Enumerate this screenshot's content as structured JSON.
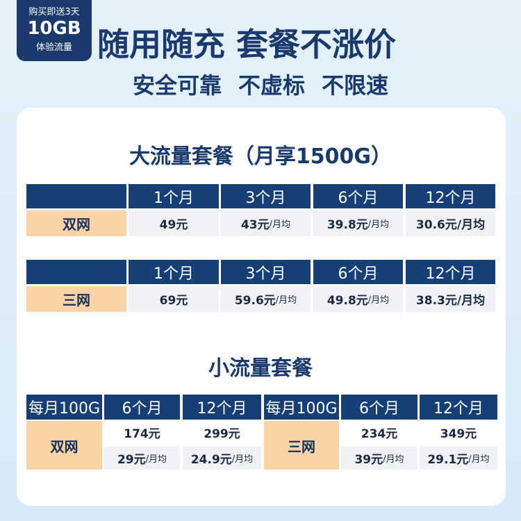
{
  "badge": {
    "line1": "购买即送3天",
    "line2": "10GB",
    "line3": "体验流量"
  },
  "title": "随用随充 套餐不涨价",
  "subtitle": [
    "安全可靠",
    "不虚标",
    "不限速"
  ],
  "section1": {
    "title": "大流量套餐（月享1500G）",
    "tables": [
      {
        "header": [
          "1个月",
          "3个月",
          "6个月",
          "12个月"
        ],
        "label": "双网",
        "cells": [
          {
            "price": "49元"
          },
          {
            "price": "43元",
            "unit": "/月均"
          },
          {
            "price": "39.8元",
            "unit": "/月均"
          },
          {
            "price": "30.6元/月均"
          }
        ]
      },
      {
        "header": [
          "1个月",
          "3个月",
          "6个月",
          "12个月"
        ],
        "label": "三网",
        "cells": [
          {
            "price": "69元"
          },
          {
            "price": "59.6元",
            "unit": "/月均"
          },
          {
            "price": "49.8元",
            "unit": "/月均"
          },
          {
            "price": "38.3元/月均"
          }
        ]
      }
    ]
  },
  "section2": {
    "title": "小流量套餐",
    "tables": [
      {
        "header": [
          "每月100G",
          "6个月",
          "12个月"
        ],
        "label": "双网",
        "rows": [
          [
            {
              "price": "174元"
            },
            {
              "price": "299元"
            }
          ],
          [
            {
              "price": "29元",
              "unit": "/月均"
            },
            {
              "price": "24.9元",
              "unit": "/月均"
            }
          ]
        ]
      },
      {
        "header": [
          "每月100G",
          "6个月",
          "12个月"
        ],
        "label": "三网",
        "rows": [
          [
            {
              "price": "234元"
            },
            {
              "price": "349元"
            }
          ],
          [
            {
              "price": "39元",
              "unit": "/月均"
            },
            {
              "price": "29.1元",
              "unit": "/月均"
            }
          ]
        ]
      }
    ]
  }
}
